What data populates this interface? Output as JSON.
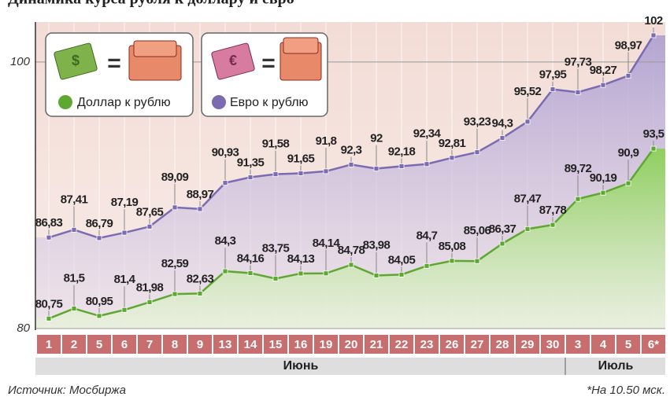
{
  "chart_data": {
    "type": "line",
    "title": "Динамика курса рубля к доллару и евро",
    "categories": [
      "1",
      "2",
      "5",
      "6",
      "7",
      "8",
      "9",
      "13",
      "14",
      "15",
      "16",
      "19",
      "20",
      "21",
      "22",
      "23",
      "26",
      "27",
      "28",
      "29",
      "30",
      "3",
      "4",
      "5",
      "6*"
    ],
    "months": [
      {
        "label": "Июнь",
        "from": 0,
        "to": 20
      },
      {
        "label": "Июль",
        "from": 21,
        "to": 24
      }
    ],
    "series": [
      {
        "name": "Евро к рублю",
        "color": "#7b6bb0",
        "values": [
          86.83,
          87.41,
          86.79,
          87.19,
          87.65,
          89.09,
          88.97,
          90.93,
          91.35,
          91.58,
          91.65,
          91.8,
          92.3,
          92,
          92.18,
          92.34,
          92.81,
          93.23,
          94.3,
          95.52,
          97.95,
          97.73,
          98.27,
          98.97,
          102
        ],
        "value_labels": [
          "86,83",
          "87,41",
          "86,79",
          "87,19",
          "87,65",
          "89,09",
          "88,97",
          "90,93",
          "91,35",
          "91,58",
          "91,65",
          "91,8",
          "92,3",
          "92",
          "92,18",
          "92,34",
          "92,81",
          "93,23",
          "94,3",
          "95,52",
          "97,95",
          "97,73",
          "98,27",
          "98,97",
          "102"
        ]
      },
      {
        "name": "Доллар к рублю",
        "color": "#5ea832",
        "values": [
          80.75,
          81.5,
          80.95,
          81.4,
          81.98,
          82.59,
          82.63,
          84.3,
          84.16,
          83.75,
          84.13,
          84.14,
          84.78,
          83.98,
          84.05,
          84.7,
          85.08,
          85.06,
          86.37,
          87.47,
          87.78,
          89.72,
          90.19,
          90.9,
          93.5
        ],
        "value_labels": [
          "80,75",
          "81,5",
          "80,95",
          "81,4",
          "81,98",
          "82,59",
          "82,63",
          "84,3",
          "84,16",
          "83,75",
          "84,13",
          "84,14",
          "84,78",
          "83,98",
          "84,05",
          "84,7",
          "85,08",
          "85,06",
          "86,37",
          "87,47",
          "87,78",
          "89,72",
          "90,19",
          "90,9",
          "93,5"
        ]
      }
    ],
    "highlight_last_color": "#8b1538",
    "ylim": [
      80,
      103
    ],
    "yticks": [
      80,
      100
    ],
    "grid": true,
    "source": "Источник: Мосбиржа",
    "note": "*На 10.50 мск."
  }
}
